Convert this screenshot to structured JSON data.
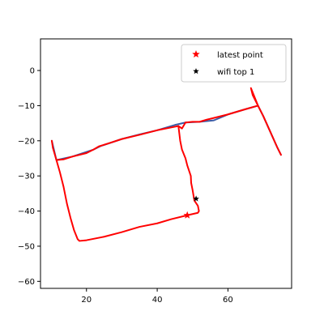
{
  "chart_data": {
    "type": "scatter",
    "xlim": [
      7,
      78
    ],
    "ylim": [
      -62,
      9
    ],
    "x_ticks": [
      20,
      40,
      60
    ],
    "y_ticks": [
      0,
      -10,
      -20,
      -30,
      -40,
      -50,
      -60
    ],
    "grid": false,
    "legend_position": "top-right",
    "series": [
      {
        "name": "",
        "kind": "line",
        "color": "#3b5ba5",
        "points": [
          [
            10.2,
            -20.0
          ],
          [
            11.5,
            -25.5
          ],
          [
            16,
            -24.5
          ],
          [
            22,
            -22.5
          ],
          [
            24,
            -21.5
          ],
          [
            30,
            -19.5
          ],
          [
            35,
            -18.2
          ],
          [
            40,
            -17.0
          ],
          [
            45,
            -15.5
          ],
          [
            48,
            -14.8
          ],
          [
            52,
            -14.6
          ],
          [
            56,
            -14.2
          ],
          [
            60,
            -12.5
          ],
          [
            65,
            -11.0
          ],
          [
            68.5,
            -10.0
          ],
          [
            70,
            -13.0
          ],
          [
            72,
            -17.5
          ],
          [
            74,
            -22.0
          ],
          [
            75,
            -24.0
          ]
        ]
      },
      {
        "name": "",
        "kind": "line",
        "color": "#ff0000",
        "points": [
          [
            10.2,
            -20.0
          ],
          [
            10.5,
            -22.0
          ],
          [
            11.5,
            -25.5
          ],
          [
            13.5,
            -25.3
          ],
          [
            16,
            -24.5
          ],
          [
            20,
            -23.5
          ],
          [
            22,
            -22.5
          ],
          [
            23.5,
            -21.6
          ],
          [
            27,
            -20.5
          ],
          [
            30,
            -19.5
          ],
          [
            35,
            -18.3
          ],
          [
            40,
            -17.0
          ],
          [
            44,
            -16.2
          ],
          [
            46,
            -15.8
          ],
          [
            47,
            -16.5
          ],
          [
            48,
            -14.8
          ],
          [
            50,
            -14.6
          ],
          [
            52,
            -14.6
          ],
          [
            54,
            -14.0
          ],
          [
            56,
            -13.5
          ],
          [
            60,
            -12.5
          ],
          [
            65,
            -11.0
          ],
          [
            68.5,
            -10.0
          ],
          [
            67,
            -7.0
          ],
          [
            66.5,
            -5.0
          ],
          [
            68.5,
            -10.0
          ],
          [
            70,
            -13.0
          ],
          [
            72,
            -17.5
          ],
          [
            74,
            -22.0
          ],
          [
            75,
            -24.0
          ]
        ]
      },
      {
        "name": "",
        "kind": "line",
        "color": "#ff0000",
        "points": [
          [
            46,
            -15.8
          ],
          [
            46.5,
            -20.0
          ],
          [
            47,
            -22.5
          ],
          [
            48,
            -25.0
          ],
          [
            48.5,
            -27.0
          ],
          [
            49.5,
            -30.0
          ],
          [
            49.6,
            -32.0
          ],
          [
            50,
            -34.0
          ],
          [
            50.5,
            -37.0
          ],
          [
            51.5,
            -38.5
          ],
          [
            51.8,
            -40.0
          ],
          [
            51.5,
            -40.5
          ],
          [
            48.5,
            -41.2
          ],
          [
            44,
            -42.3
          ],
          [
            40,
            -43.5
          ],
          [
            35,
            -44.5
          ],
          [
            30,
            -46.0
          ],
          [
            25,
            -47.3
          ],
          [
            20,
            -48.3
          ],
          [
            18,
            -48.5
          ],
          [
            17.5,
            -48.0
          ],
          [
            16.5,
            -45.5
          ],
          [
            15.5,
            -42.0
          ],
          [
            14.5,
            -38.0
          ],
          [
            13.5,
            -33.0
          ],
          [
            12.5,
            -29.0
          ],
          [
            11.5,
            -25.5
          ]
        ]
      },
      {
        "name": "latest point",
        "kind": "marker",
        "color": "#ff0000",
        "marker": "star",
        "points": [
          [
            48.5,
            -41.2
          ]
        ]
      },
      {
        "name": "wifi top 1",
        "kind": "marker",
        "color": "#000000",
        "marker": "star",
        "points": [
          [
            51.0,
            -36.5
          ]
        ]
      }
    ],
    "legend": [
      {
        "label": "latest point",
        "color": "#ff0000",
        "marker": "star"
      },
      {
        "label": "wifi top 1",
        "color": "#000000",
        "marker": "star"
      }
    ]
  }
}
